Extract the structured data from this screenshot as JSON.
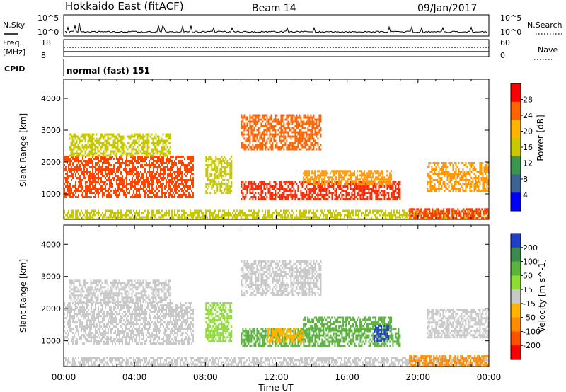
{
  "header": {
    "site": "Hokkaido East (fitACF)",
    "beam": "Beam 14",
    "date": "09/Jan/2017"
  },
  "top_panels": {
    "nsky_label": "N.Sky",
    "nsky_ticks": [
      "10^5",
      "10^0"
    ],
    "nsearch_label": "N.Search",
    "nsearch_ticks": [
      "10^5",
      "10^0"
    ],
    "freq_label": "Freq.",
    "freq_unit": "[MHz]",
    "freq_ticks": [
      "18",
      "8"
    ],
    "nave_label": "Nave",
    "nave_ticks": [
      "60",
      "0"
    ],
    "cpid_label": "CPID",
    "cpid_value": "normal (fast) 151"
  },
  "chart_data": [
    {
      "type": "heatmap",
      "title": "",
      "xlabel": "Time UT",
      "ylabel": "Slant Range [km]",
      "x_ticks": [
        "00:00",
        "04:00",
        "08:00",
        "12:00",
        "16:00",
        "20:00",
        "00:00"
      ],
      "y_ticks": [
        "1000",
        "2000",
        "3000",
        "4000"
      ],
      "xlim_hours": [
        0,
        24
      ],
      "ylim_km": [
        200,
        4600
      ],
      "colorbar": {
        "label": "Power [dB]",
        "ticks": [
          "28",
          "24",
          "20",
          "16",
          "12",
          "8",
          "4"
        ],
        "colors": [
          "#ff0000",
          "#ff6400",
          "#ffb400",
          "#c8c800",
          "#3c9650",
          "#3c6496",
          "#0000ff"
        ]
      },
      "regions": [
        {
          "t0": 0.0,
          "t1": 7.3,
          "r0": 900,
          "r1": 2200,
          "color": "#ff4600"
        },
        {
          "t0": 0.3,
          "t1": 6.0,
          "r0": 2200,
          "r1": 2900,
          "color": "#c8c800"
        },
        {
          "t0": 8.0,
          "t1": 9.5,
          "r0": 1000,
          "r1": 2200,
          "color": "#c8c800"
        },
        {
          "t0": 10.0,
          "t1": 14.5,
          "r0": 2400,
          "r1": 3500,
          "color": "#ff6400"
        },
        {
          "t0": 10.0,
          "t1": 19.0,
          "r0": 850,
          "r1": 1400,
          "color": "#ff2800"
        },
        {
          "t0": 13.5,
          "t1": 18.5,
          "r0": 1300,
          "r1": 1750,
          "color": "#ff9600"
        },
        {
          "t0": 20.5,
          "t1": 24.0,
          "r0": 1100,
          "r1": 2000,
          "color": "#ff9600"
        },
        {
          "t0": 0.0,
          "t1": 24.0,
          "r0": 200,
          "r1": 500,
          "color": "#c8c800"
        },
        {
          "t0": 19.5,
          "t1": 24.0,
          "r0": 250,
          "r1": 550,
          "color": "#ff3200"
        }
      ]
    },
    {
      "type": "heatmap",
      "title": "",
      "xlabel": "Time UT",
      "ylabel": "Slant Range [km]",
      "x_ticks": [
        "00:00",
        "04:00",
        "08:00",
        "12:00",
        "16:00",
        "20:00",
        "00:00"
      ],
      "y_ticks": [
        "1000",
        "2000",
        "3000",
        "4000"
      ],
      "xlim_hours": [
        0,
        24
      ],
      "ylim_km": [
        200,
        4600
      ],
      "colorbar": {
        "label": "Velocity [m s^-1]",
        "ticks": [
          "200",
          "100",
          "50",
          "15",
          "-15",
          "-50",
          "-100",
          "-200"
        ],
        "colors": [
          "#2040c8",
          "#3c8c50",
          "#5ab43c",
          "#8cdc32",
          "#c8c8c8",
          "#ffb400",
          "#ff8c00",
          "#ff5000",
          "#ff0000"
        ]
      },
      "regions": [
        {
          "t0": 0.0,
          "t1": 7.3,
          "r0": 900,
          "r1": 2200,
          "color": "#c8c8c8"
        },
        {
          "t0": 0.3,
          "t1": 6.0,
          "r0": 2200,
          "r1": 2900,
          "color": "#c8c8c8"
        },
        {
          "t0": 8.0,
          "t1": 9.5,
          "r0": 1000,
          "r1": 2200,
          "color": "#8cdc32"
        },
        {
          "t0": 10.0,
          "t1": 14.5,
          "r0": 2400,
          "r1": 3500,
          "color": "#c8c8c8"
        },
        {
          "t0": 10.0,
          "t1": 19.0,
          "r0": 850,
          "r1": 1400,
          "color": "#5ab43c"
        },
        {
          "t0": 11.5,
          "t1": 13.5,
          "r0": 1000,
          "r1": 1400,
          "color": "#ffb400"
        },
        {
          "t0": 13.5,
          "t1": 18.5,
          "r0": 1300,
          "r1": 1750,
          "color": "#5ab43c"
        },
        {
          "t0": 17.5,
          "t1": 18.3,
          "r0": 1000,
          "r1": 1500,
          "color": "#2040c8"
        },
        {
          "t0": 20.5,
          "t1": 24.0,
          "r0": 1100,
          "r1": 2000,
          "color": "#c8c8c8"
        },
        {
          "t0": 0.0,
          "t1": 24.0,
          "r0": 200,
          "r1": 500,
          "color": "#c8c8c8"
        },
        {
          "t0": 19.5,
          "t1": 24.0,
          "r0": 250,
          "r1": 550,
          "color": "#ff8c00"
        }
      ]
    }
  ]
}
